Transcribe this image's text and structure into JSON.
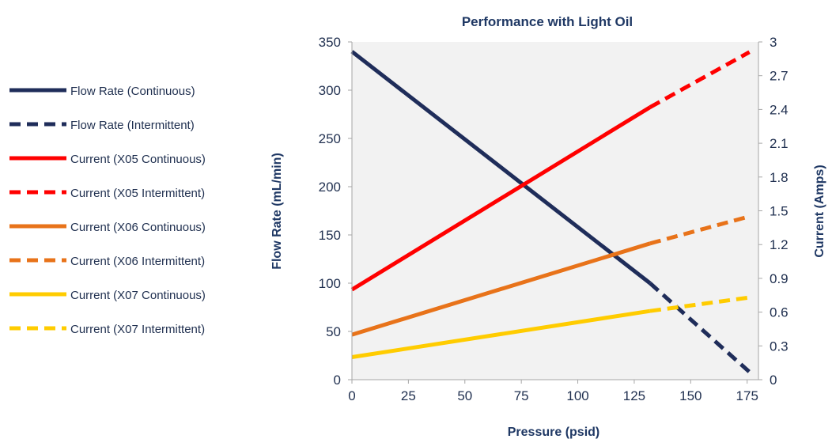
{
  "chart_data": {
    "type": "line",
    "title": "Performance with Light Oil",
    "xlabel": "Pressure (psid)",
    "ylabel_left": "Flow Rate (mL/min)",
    "ylabel_right": "Current (Amps)",
    "xlim": [
      0,
      180
    ],
    "ylim_left": [
      0,
      350
    ],
    "ylim_right": [
      0,
      3
    ],
    "x_ticks": [
      "0",
      "25",
      "50",
      "75",
      "100",
      "125",
      "150",
      "175"
    ],
    "y_left_ticks": [
      "0",
      "50",
      "100",
      "150",
      "200",
      "250",
      "300",
      "350"
    ],
    "y_right_ticks": [
      "0",
      "0.3",
      "0.6",
      "0.9",
      "1.2",
      "1.5",
      "1.8",
      "2.1",
      "2.4",
      "2.7",
      "3"
    ],
    "plot_background": "#f2f2f2",
    "grid": false,
    "legend_position": "left",
    "series": [
      {
        "name": "Flow Rate (Continuous)",
        "axis": "left",
        "color": "#1f2d5a",
        "dash": "solid",
        "points": [
          [
            0,
            340
          ],
          [
            132,
            100
          ]
        ]
      },
      {
        "name": "Flow Rate (Intermittent)",
        "axis": "left",
        "color": "#1f2d5a",
        "dash": "dashed",
        "points": [
          [
            132,
            100
          ],
          [
            176,
            8
          ]
        ]
      },
      {
        "name": "Current (X05 Continuous)",
        "axis": "right",
        "color": "#ff0000",
        "dash": "solid",
        "points": [
          [
            0,
            0.8
          ],
          [
            132,
            2.42
          ]
        ]
      },
      {
        "name": "Current (X05 Intermittent)",
        "axis": "right",
        "color": "#ff0000",
        "dash": "dashed",
        "points": [
          [
            132,
            2.42
          ],
          [
            176,
            2.91
          ]
        ]
      },
      {
        "name": "Current (X06 Continuous)",
        "axis": "right",
        "color": "#e8731a",
        "dash": "solid",
        "points": [
          [
            0,
            0.4
          ],
          [
            132,
            1.21
          ]
        ]
      },
      {
        "name": "Current (X06 Intermittent)",
        "axis": "right",
        "color": "#e8731a",
        "dash": "dashed",
        "points": [
          [
            132,
            1.21
          ],
          [
            176,
            1.45
          ]
        ]
      },
      {
        "name": "Current (X07 Continuous)",
        "axis": "right",
        "color": "#ffcc00",
        "dash": "solid",
        "points": [
          [
            0,
            0.2
          ],
          [
            132,
            0.61
          ]
        ]
      },
      {
        "name": "Current (X07 Intermittent)",
        "axis": "right",
        "color": "#ffcc00",
        "dash": "dashed",
        "points": [
          [
            132,
            0.61
          ],
          [
            176,
            0.73
          ]
        ]
      }
    ]
  }
}
